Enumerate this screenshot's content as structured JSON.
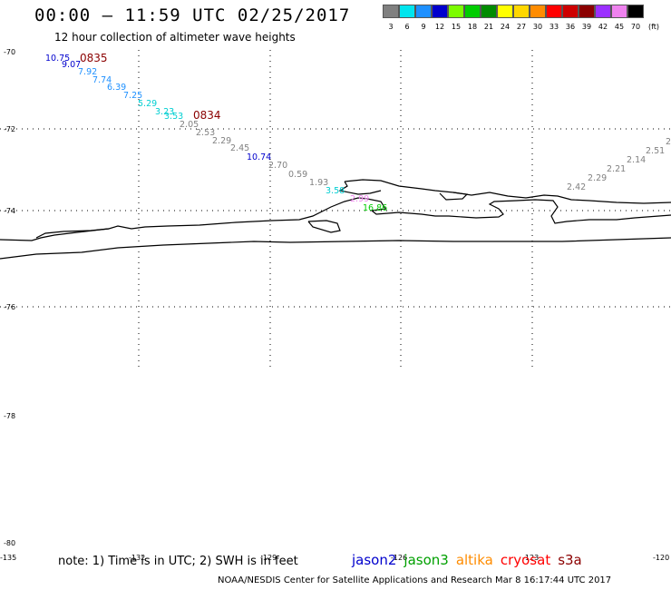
{
  "title": "00:00 — 11:59 UTC 02/25/2017",
  "subtitle": "12 hour collection of altimeter wave heights",
  "note": "note: 1) Time is in UTC; 2) SWH is in feet",
  "credit": "NOAA/NESDIS Center for Satellite Applications and Research    Mar  8 16:17:44 UTC 2017",
  "color_scale": {
    "unit": "(ft)",
    "bins": [
      {
        "label": "3",
        "color": "#808080"
      },
      {
        "label": "6",
        "color": "#00e5ee"
      },
      {
        "label": "9",
        "color": "#1e90ff"
      },
      {
        "label": "12",
        "color": "#0000cd"
      },
      {
        "label": "15",
        "color": "#7cfc00"
      },
      {
        "label": "18",
        "color": "#00cd00"
      },
      {
        "label": "21",
        "color": "#008b00"
      },
      {
        "label": "24",
        "color": "#ffff00"
      },
      {
        "label": "27",
        "color": "#ffd700"
      },
      {
        "label": "30",
        "color": "#ff8c00"
      },
      {
        "label": "33",
        "color": "#ff0000"
      },
      {
        "label": "36",
        "color": "#cd0000"
      },
      {
        "label": "39",
        "color": "#8b0000"
      },
      {
        "label": "42",
        "color": "#9b30ff"
      },
      {
        "label": "45",
        "color": "#ee82ee"
      },
      {
        "label": "70",
        "color": "#000000"
      }
    ]
  },
  "legend": [
    {
      "name": "jason2",
      "color": "#0000cd"
    },
    {
      "name": "jason3",
      "color": "#00a000"
    },
    {
      "name": "altika",
      "color": "#ff8c00"
    },
    {
      "name": "cryosat",
      "color": "#ff0000"
    },
    {
      "name": "s3a",
      "color": "#8b0000"
    }
  ],
  "lat_labels": [
    "-70",
    "-72",
    "-74",
    "-76",
    "-78",
    "-80"
  ],
  "lon_labels": [
    "-135",
    "-132",
    "-129",
    "-126",
    "-123",
    "-120"
  ],
  "pass_times": [
    "0835",
    "0834"
  ],
  "observations": [
    {
      "value": "10.75",
      "color": "#0000cd"
    },
    {
      "value": "9.07",
      "color": "#0000cd"
    },
    {
      "value": "7.92",
      "color": "#1e90ff"
    },
    {
      "value": "7.74",
      "color": "#1e90ff"
    },
    {
      "value": "6.39",
      "color": "#1e90ff"
    },
    {
      "value": "7.25",
      "color": "#1e90ff"
    },
    {
      "value": "5.29",
      "color": "#00ced1"
    },
    {
      "value": "3.23",
      "color": "#00ced1"
    },
    {
      "value": "3.53",
      "color": "#00ced1"
    },
    {
      "value": "2.05",
      "color": "#808080"
    },
    {
      "value": "2.53",
      "color": "#808080"
    },
    {
      "value": "2.29",
      "color": "#808080"
    },
    {
      "value": "2.45",
      "color": "#808080"
    },
    {
      "value": "10.74",
      "color": "#0000cd"
    },
    {
      "value": "2.70",
      "color": "#808080"
    },
    {
      "value": "0.59",
      "color": "#808080"
    },
    {
      "value": "1.93",
      "color": "#808080"
    },
    {
      "value": "3.58",
      "color": "#00ced1"
    },
    {
      "value": "2.99",
      "color": "#ee82ee"
    },
    {
      "value": "16.86",
      "color": "#00cd00"
    },
    {
      "value": "2.42",
      "color": "#808080"
    },
    {
      "value": "2.29",
      "color": "#808080"
    },
    {
      "value": "2.21",
      "color": "#808080"
    },
    {
      "value": "2.14",
      "color": "#808080"
    },
    {
      "value": "2.51",
      "color": "#808080"
    },
    {
      "value": "2",
      "color": "#808080"
    }
  ]
}
